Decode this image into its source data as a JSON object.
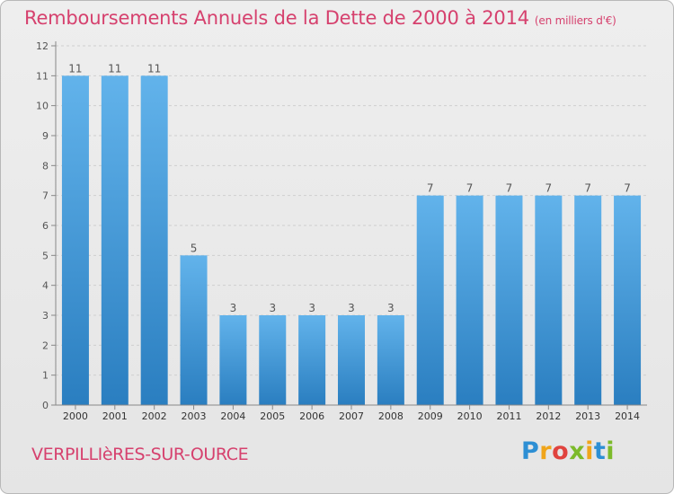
{
  "header": {
    "title": "Remboursements Annuels de la Dette de 2000 à 2014",
    "unit": "(en milliers d'€)"
  },
  "footer": {
    "commune": "VERPILLIèRES-SUR-OURCE",
    "logo_text": "Proxiti",
    "logo_colors": [
      "#2d8fd4",
      "#f0a51a",
      "#7cba2a",
      "#e0433e"
    ]
  },
  "chart_data": {
    "type": "bar",
    "title": "Remboursements Annuels de la Dette de 2000 à 2014",
    "subtitle": "(en milliers d'€)",
    "xlabel": "",
    "ylabel": "",
    "categories": [
      "2000",
      "2001",
      "2002",
      "2003",
      "2004",
      "2005",
      "2006",
      "2007",
      "2008",
      "2009",
      "2010",
      "2011",
      "2012",
      "2013",
      "2014"
    ],
    "values": [
      11,
      11,
      11,
      5,
      3,
      3,
      3,
      3,
      3,
      7,
      7,
      7,
      7,
      7,
      7
    ],
    "data_labels": [
      "11",
      "11",
      "11",
      "5",
      "3",
      "3",
      "3",
      "3",
      "3",
      "7",
      "7",
      "7",
      "7",
      "7",
      "7"
    ],
    "ylim": [
      0,
      12
    ],
    "yticks": [
      0,
      1,
      2,
      3,
      4,
      5,
      6,
      7,
      8,
      9,
      10,
      11,
      12
    ],
    "grid": "horizontal-dashed",
    "colors": {
      "bar_top": "#62b3eb",
      "bar_bottom": "#2a7ec0",
      "title": "#d6416e",
      "axis": "#888888",
      "grid": "#cfcfcf"
    }
  }
}
